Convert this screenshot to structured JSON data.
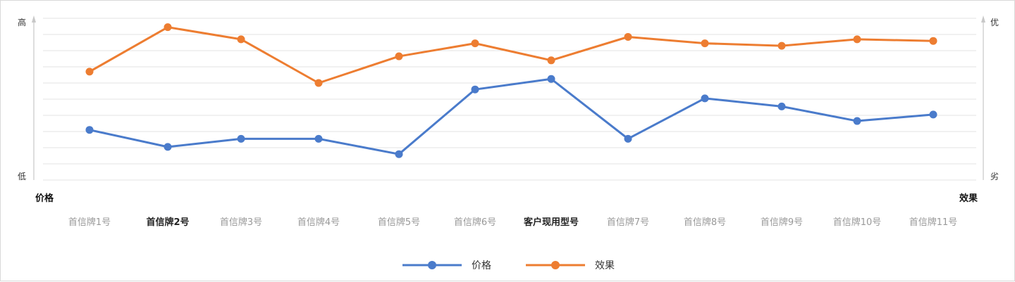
{
  "chart_data": {
    "type": "line",
    "categories": [
      "首信牌1号",
      "首信牌2号",
      "首信牌3号",
      "首信牌4号",
      "首信牌5号",
      "首信牌6号",
      "客户现用型号",
      "首信牌7号",
      "首信牌8号",
      "首信牌9号",
      "首信牌10号",
      "首信牌11号"
    ],
    "highlighted_categories": [
      "首信牌2号",
      "客户现用型号"
    ],
    "series": [
      {
        "name": "价格",
        "color": "#4a7bcb",
        "values": [
          3.1,
          2.05,
          2.55,
          2.55,
          1.6,
          5.6,
          6.25,
          2.55,
          5.05,
          4.55,
          3.65,
          4.05
        ]
      },
      {
        "name": "效果",
        "color": "#ed7d31",
        "values": [
          6.7,
          9.45,
          8.7,
          6.0,
          7.65,
          8.45,
          7.4,
          8.85,
          8.45,
          8.3,
          8.7,
          8.6
        ]
      }
    ],
    "ylim": [
      0,
      10
    ],
    "left_axis": {
      "label": "价格",
      "top_label": "高",
      "bottom_label": "低"
    },
    "right_axis": {
      "label": "效果",
      "top_label": "优",
      "bottom_label": "劣"
    },
    "grid": true,
    "legend_position": "bottom-center"
  }
}
